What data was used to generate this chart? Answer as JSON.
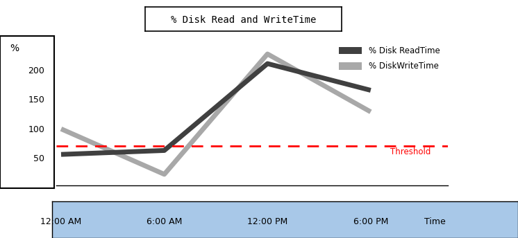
{
  "title": "% Disk Read and WriteTime",
  "ylabel": "%",
  "xlabel": "Time",
  "x_ticks": [
    0,
    1,
    2,
    3
  ],
  "x_tick_labels": [
    "12:00 AM",
    "6:00 AM",
    "12:00 PM",
    "6:00 PM"
  ],
  "read_time": [
    55,
    62,
    215,
    168
  ],
  "write_time": [
    100,
    20,
    232,
    130
  ],
  "threshold": 70,
  "threshold_label": "Threshold",
  "threshold_color": "#FF0000",
  "read_color": "#404040",
  "write_color": "#A8A8A8",
  "ylim": [
    0,
    260
  ],
  "yticks": [
    50,
    100,
    150,
    200
  ],
  "legend_read": "% Disk ReadTime",
  "legend_write": "% DiskWriteTime",
  "xaxis_bg": "#A8C8E8",
  "title_fontsize": 10,
  "axis_fontsize": 9,
  "line_width": 5,
  "figsize": [
    7.46,
    3.44
  ],
  "dpi": 100
}
